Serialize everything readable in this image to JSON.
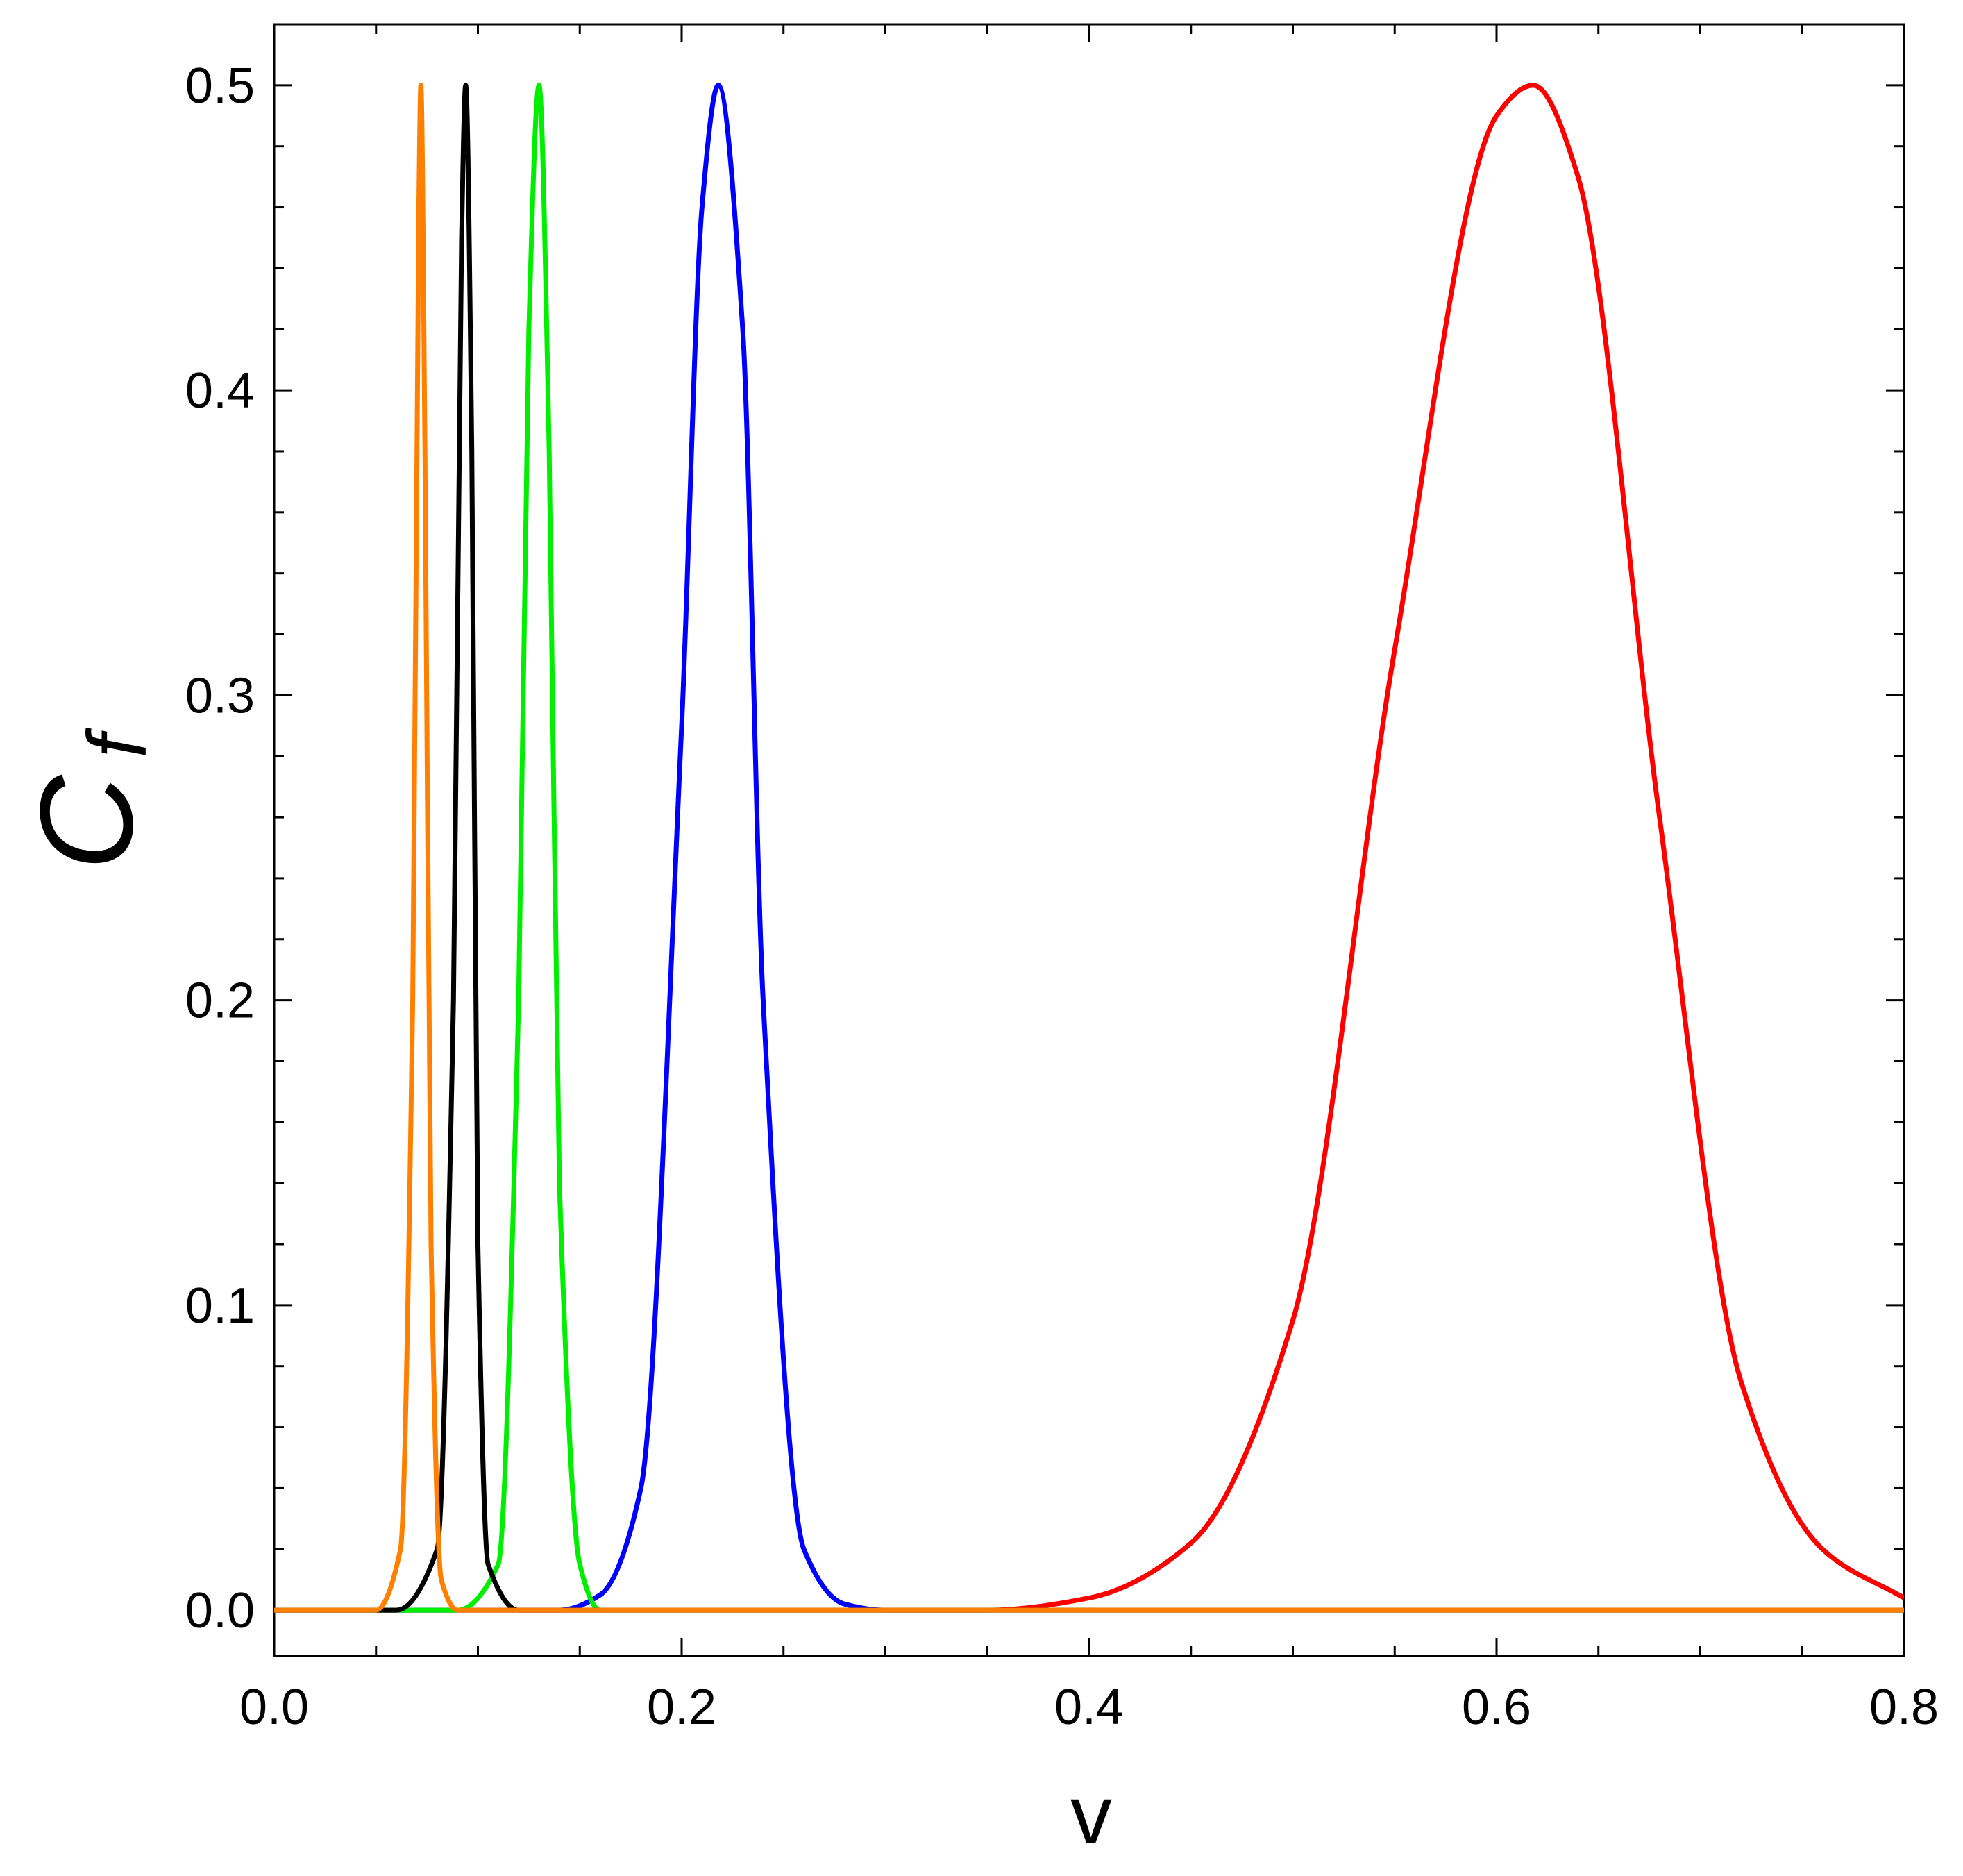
{
  "chart_data": {
    "type": "line",
    "title": "",
    "xlabel": "v",
    "ylabel": "C",
    "ylabel_subscript": "f",
    "xlim": [
      0.0,
      0.8
    ],
    "ylim": [
      -0.015,
      0.52
    ],
    "x_ticks": [
      0.0,
      0.2,
      0.4,
      0.6,
      0.8
    ],
    "x_tick_labels": [
      "0.0",
      "0.2",
      "0.4",
      "0.6",
      "0.8"
    ],
    "y_ticks": [
      0.0,
      0.1,
      0.2,
      0.3,
      0.4,
      0.5
    ],
    "y_tick_labels": [
      "0.0",
      "0.1",
      "0.2",
      "0.3",
      "0.4",
      "0.5"
    ],
    "grid": false,
    "legend": "none",
    "series": [
      {
        "color": "#ff0000",
        "peak_x": 0.618,
        "peak_y": 0.5,
        "x": [
          0.35,
          0.4,
          0.45,
          0.5,
          0.55,
          0.6,
          0.618,
          0.64,
          0.68,
          0.72,
          0.76,
          0.8
        ],
        "y": [
          0.0,
          0.004,
          0.022,
          0.095,
          0.315,
          0.49,
          0.5,
          0.47,
          0.26,
          0.075,
          0.02,
          0.004
        ]
      },
      {
        "color": "#0000ff",
        "peak_x": 0.218,
        "peak_y": 0.5,
        "x": [
          0.14,
          0.16,
          0.18,
          0.2,
          0.21,
          0.218,
          0.23,
          0.24,
          0.26,
          0.28,
          0.3
        ],
        "y": [
          0.0,
          0.005,
          0.04,
          0.29,
          0.46,
          0.5,
          0.42,
          0.2,
          0.02,
          0.002,
          0.0
        ]
      },
      {
        "color": "#00ee00",
        "peak_x": 0.13,
        "peak_y": 0.5,
        "x": [
          0.09,
          0.11,
          0.12,
          0.125,
          0.13,
          0.135,
          0.14,
          0.15,
          0.16
        ],
        "y": [
          0.0,
          0.015,
          0.2,
          0.42,
          0.5,
          0.38,
          0.14,
          0.015,
          0.0
        ]
      },
      {
        "color": "#000000",
        "peak_x": 0.094,
        "peak_y": 0.5,
        "x": [
          0.06,
          0.08,
          0.088,
          0.092,
          0.094,
          0.097,
          0.1,
          0.105,
          0.12
        ],
        "y": [
          0.0,
          0.02,
          0.2,
          0.45,
          0.5,
          0.38,
          0.12,
          0.015,
          0.0
        ]
      },
      {
        "color": "#ff8000",
        "peak_x": 0.072,
        "peak_y": 0.5,
        "x": [
          0.0,
          0.05,
          0.062,
          0.068,
          0.071,
          0.072,
          0.074,
          0.077,
          0.082,
          0.09,
          0.8
        ],
        "y": [
          0.0,
          0.0,
          0.02,
          0.2,
          0.46,
          0.5,
          0.38,
          0.12,
          0.01,
          0.0,
          0.0
        ]
      }
    ]
  }
}
